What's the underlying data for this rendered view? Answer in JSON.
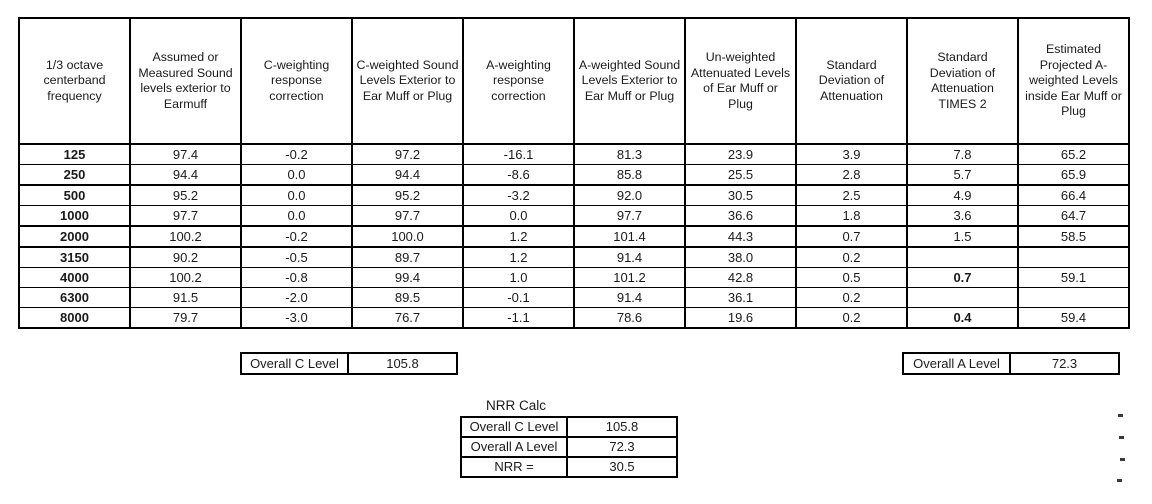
{
  "table": {
    "headers": [
      "1/3 octave centerband frequency",
      "Assumed or Measured Sound levels exterior to Earmuff",
      "C-weighting response correction",
      "C-weighted Sound Levels Exterior to Ear Muff or Plug",
      "A-weighting response correction",
      "A-weighted Sound Levels Exterior to Ear Muff or Plug",
      "Un-weighted Attenuated Levels of Ear Muff or Plug",
      "Standard Deviation of Attenuation",
      "Standard Deviation of Attenuation TIMES 2",
      "Estimated Projected A-weighted Levels inside Ear Muff or Plug"
    ],
    "rows": [
      {
        "freq": "125",
        "values": [
          "97.4",
          "-0.2",
          "97.2",
          "-16.1",
          "81.3",
          "23.9",
          "3.9",
          "7.8",
          "65.2"
        ]
      },
      {
        "freq": "250",
        "values": [
          "94.4",
          "0.0",
          "94.4",
          "-8.6",
          "85.8",
          "25.5",
          "2.8",
          "5.7",
          "65.9"
        ]
      },
      {
        "freq": "500",
        "values": [
          "95.2",
          "0.0",
          "95.2",
          "-3.2",
          "92.0",
          "30.5",
          "2.5",
          "4.9",
          "66.4"
        ]
      },
      {
        "freq": "1000",
        "values": [
          "97.7",
          "0.0",
          "97.7",
          "0.0",
          "97.7",
          "36.6",
          "1.8",
          "3.6",
          "64.7"
        ]
      },
      {
        "freq": "2000",
        "values": [
          "100.2",
          "-0.2",
          "100.0",
          "1.2",
          "101.4",
          "44.3",
          "0.7",
          "1.5",
          "58.5"
        ]
      },
      {
        "freq": "3150",
        "values": [
          "90.2",
          "-0.5",
          "89.7",
          "1.2",
          "91.4",
          "38.0",
          "0.2",
          "",
          ""
        ]
      },
      {
        "freq": "4000",
        "values": [
          "100.2",
          "-0.8",
          "99.4",
          "1.0",
          "101.2",
          "42.8",
          "0.5",
          "0.7",
          "59.1"
        ]
      },
      {
        "freq": "6300",
        "values": [
          "91.5",
          "-2.0",
          "89.5",
          "-0.1",
          "91.4",
          "36.1",
          "0.2",
          "",
          ""
        ]
      },
      {
        "freq": "8000",
        "values": [
          "79.7",
          "-3.0",
          "76.7",
          "-1.1",
          "78.6",
          "19.6",
          "0.2",
          "0.4",
          "59.4"
        ]
      }
    ]
  },
  "summary": {
    "overall_c_label": "Overall C Level",
    "overall_c_value": "105.8",
    "overall_a_label": "Overall A Level",
    "overall_a_value": "72.3"
  },
  "nrr_calc": {
    "title": "NRR Calc",
    "rows": [
      {
        "label": "Overall C Level",
        "value": "105.8"
      },
      {
        "label": "Overall A Level",
        "value": "72.3"
      },
      {
        "label": "NRR =",
        "value": "30.5"
      }
    ]
  },
  "colors": {
    "background": "#ffffff",
    "border": "#000000",
    "text": "#1a1a1a"
  }
}
